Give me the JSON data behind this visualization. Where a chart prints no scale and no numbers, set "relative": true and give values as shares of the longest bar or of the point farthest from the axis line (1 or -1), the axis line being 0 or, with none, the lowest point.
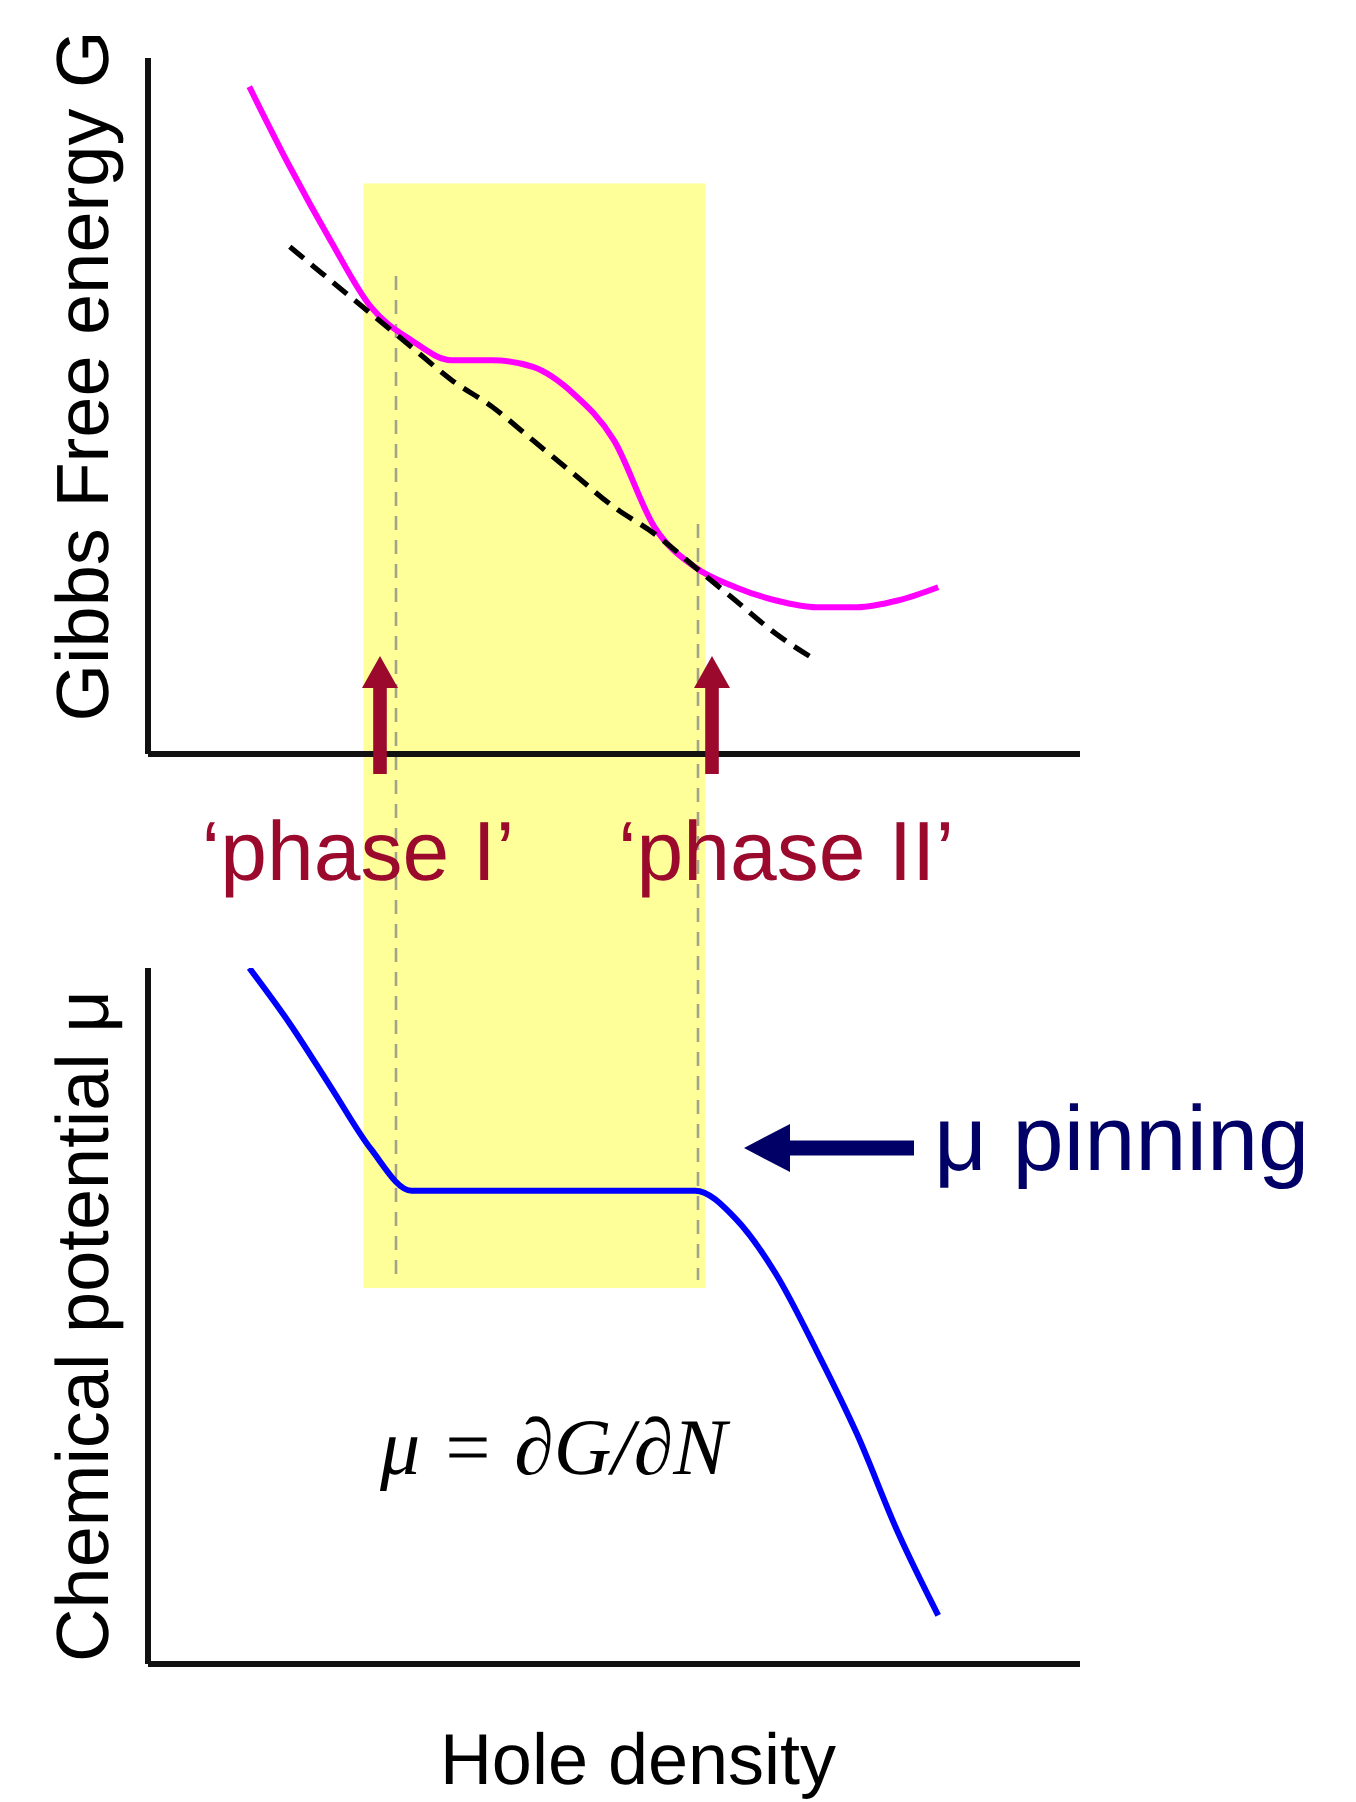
{
  "chart_data": [
    {
      "type": "line",
      "ylabel": "Gibbs Free energy G",
      "relative": true,
      "categories": [
        null,
        null,
        null,
        null,
        null,
        null,
        null,
        null,
        null,
        null,
        null,
        null,
        null,
        null,
        null,
        null,
        null,
        null,
        null,
        null,
        null,
        null,
        null
      ],
      "series": [
        {
          "color": "#ff00ff",
          "values": [
            null,
            null,
            1.0,
            0.88,
            0.77,
            0.67,
            0.62,
            0.59,
            0.59,
            0.58,
            0.54,
            0.47,
            0.34,
            0.28,
            0.25,
            0.23,
            0.22,
            0.22,
            0.23,
            0.25,
            null,
            null,
            null
          ]
        },
        {
          "color": "#000000",
          "line_style": "dashed",
          "values": [
            null,
            null,
            null,
            0.76,
            0.71,
            0.66,
            0.61,
            0.56,
            0.52,
            0.47,
            0.42,
            0.37,
            0.33,
            0.28,
            0.23,
            0.18,
            0.14,
            null,
            null,
            null,
            null,
            null,
            null
          ]
        }
      ],
      "annotations": [
        "‘phase I’",
        "‘phase II’"
      ]
    },
    {
      "type": "line",
      "xlabel": "Hole density",
      "ylabel": "Chemical potential μ",
      "relative": true,
      "categories": [
        null,
        null,
        null,
        null,
        null,
        null,
        null,
        null,
        null,
        null,
        null,
        null,
        null,
        null,
        null,
        null,
        null,
        null,
        null,
        null,
        null,
        null,
        null
      ],
      "series": [
        {
          "color": "#0000ff",
          "values": [
            null,
            null,
            1.0,
            0.92,
            0.83,
            0.74,
            0.68,
            0.68,
            0.68,
            0.68,
            0.68,
            0.68,
            0.68,
            0.68,
            0.64,
            0.56,
            0.45,
            0.33,
            0.19,
            0.07,
            null,
            null,
            null
          ]
        }
      ],
      "annotations": [
        "μ pinning",
        "μ = ∂G/∂N"
      ]
    }
  ]
}
